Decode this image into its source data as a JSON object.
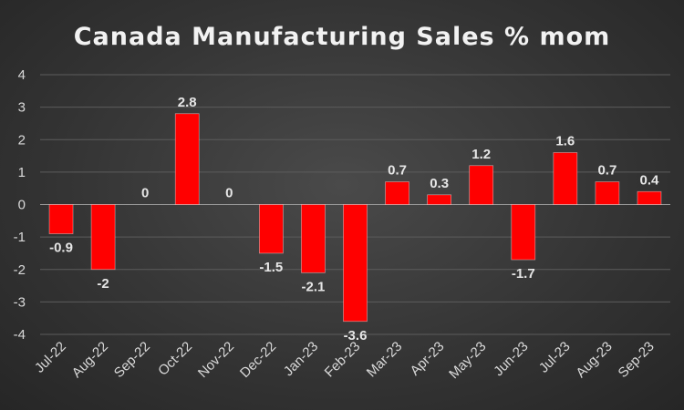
{
  "chart_data": {
    "type": "bar",
    "title": "Canada Manufacturing Sales % mom",
    "xlabel": "",
    "ylabel": "",
    "categories": [
      "Jul-22",
      "Aug-22",
      "Sep-22",
      "Oct-22",
      "Nov-22",
      "Dec-22",
      "Jan-23",
      "Feb-23",
      "Mar-23",
      "Apr-23",
      "May-23",
      "Jun-23",
      "Jul-23",
      "Aug-23",
      "Sep-23"
    ],
    "values": [
      -0.9,
      -2,
      0,
      2.8,
      0,
      -1.5,
      -2.1,
      -3.6,
      0.7,
      0.3,
      1.2,
      -1.7,
      1.6,
      0.7,
      0.4
    ],
    "data_labels": [
      "-0.9",
      "-2",
      "0",
      "2.8",
      "0",
      "-1.5",
      "-2.1",
      "-3.6",
      "0.7",
      "0.3",
      "1.2",
      "-1.7",
      "1.6",
      "0.7",
      "0.4"
    ],
    "ylim": [
      -4,
      4
    ],
    "yticks": [
      "4",
      "3",
      "2",
      "1",
      "0",
      "-1",
      "-2",
      "-3",
      "-4"
    ],
    "grid": true,
    "legend": "none",
    "bar_color": "#ff0000",
    "background": "#3a3a3a"
  }
}
